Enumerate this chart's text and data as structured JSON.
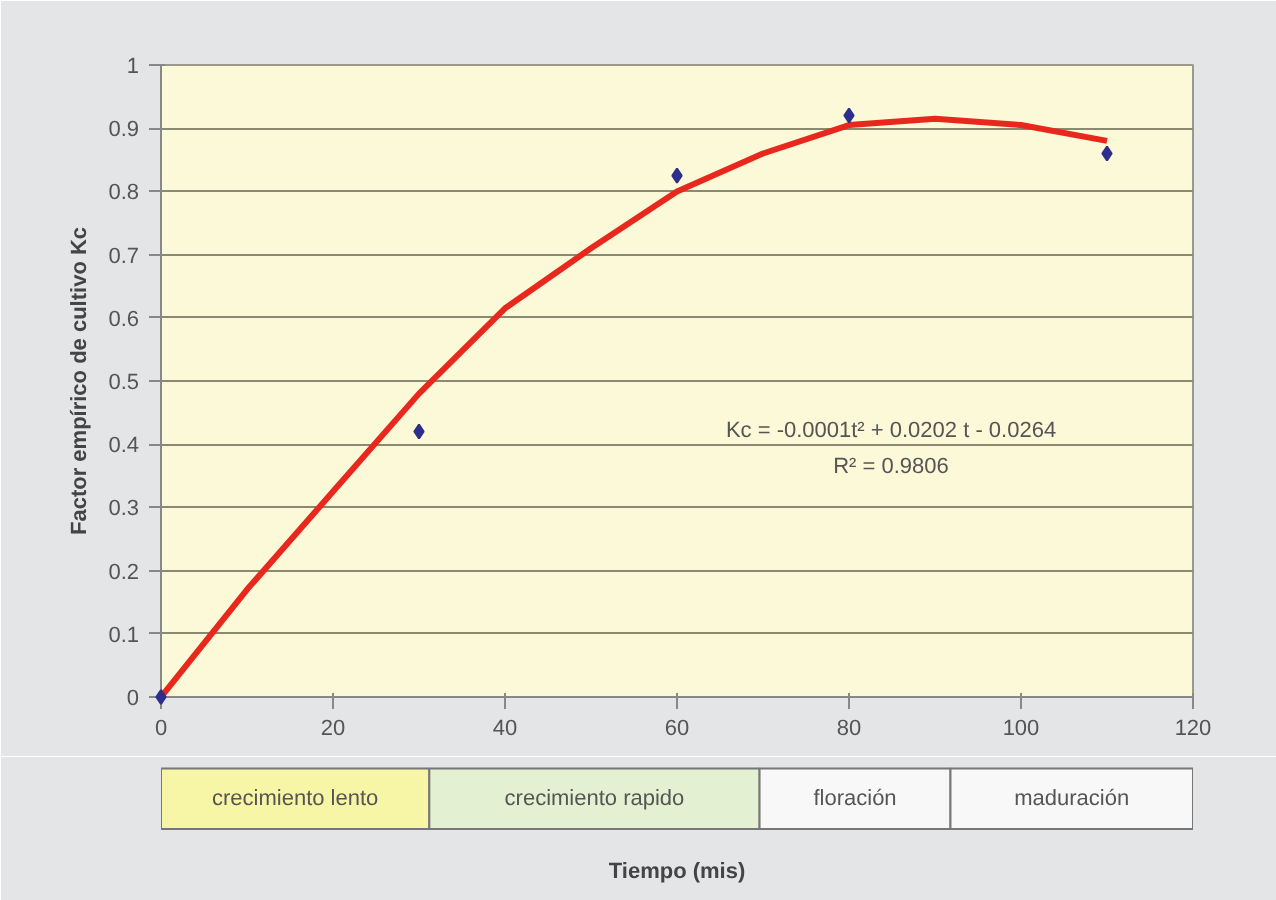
{
  "chart_data": {
    "type": "scatter",
    "ylabel": "Factor empírico de cultivo Kc",
    "xlim": [
      0,
      120
    ],
    "ylim": [
      0,
      1
    ],
    "xticks": [
      0,
      20,
      40,
      60,
      80,
      100,
      120
    ],
    "yticks": [
      0,
      0.1,
      0.2,
      0.3,
      0.4,
      0.5,
      0.6,
      0.7,
      0.8,
      0.9,
      1
    ],
    "grid": "y",
    "marker": "diamond",
    "series": [
      {
        "color": "#2e2e8c",
        "x": [
          0,
          30,
          60,
          80,
          110
        ],
        "values": [
          0,
          0.42,
          0.825,
          0.92,
          0.86
        ]
      },
      {
        "type": "line",
        "color": "#e8271d",
        "marker": "none",
        "line_style": "solid",
        "x": [
          0,
          10,
          20,
          30,
          40,
          50,
          60,
          70,
          80,
          90,
          100,
          110
        ],
        "values": [
          0,
          0.17,
          0.325,
          0.48,
          0.615,
          0.71,
          0.8,
          0.86,
          0.905,
          0.915,
          0.905,
          0.88
        ]
      }
    ],
    "annotations": [
      "Kc = -0.0001t² + 0.0202 t - 0.0264",
      "R² = 0.9806",
      "crecimiento lento",
      "crecimiento rapido",
      "floración",
      "maduración",
      "Tiempo (mis)"
    ]
  }
}
